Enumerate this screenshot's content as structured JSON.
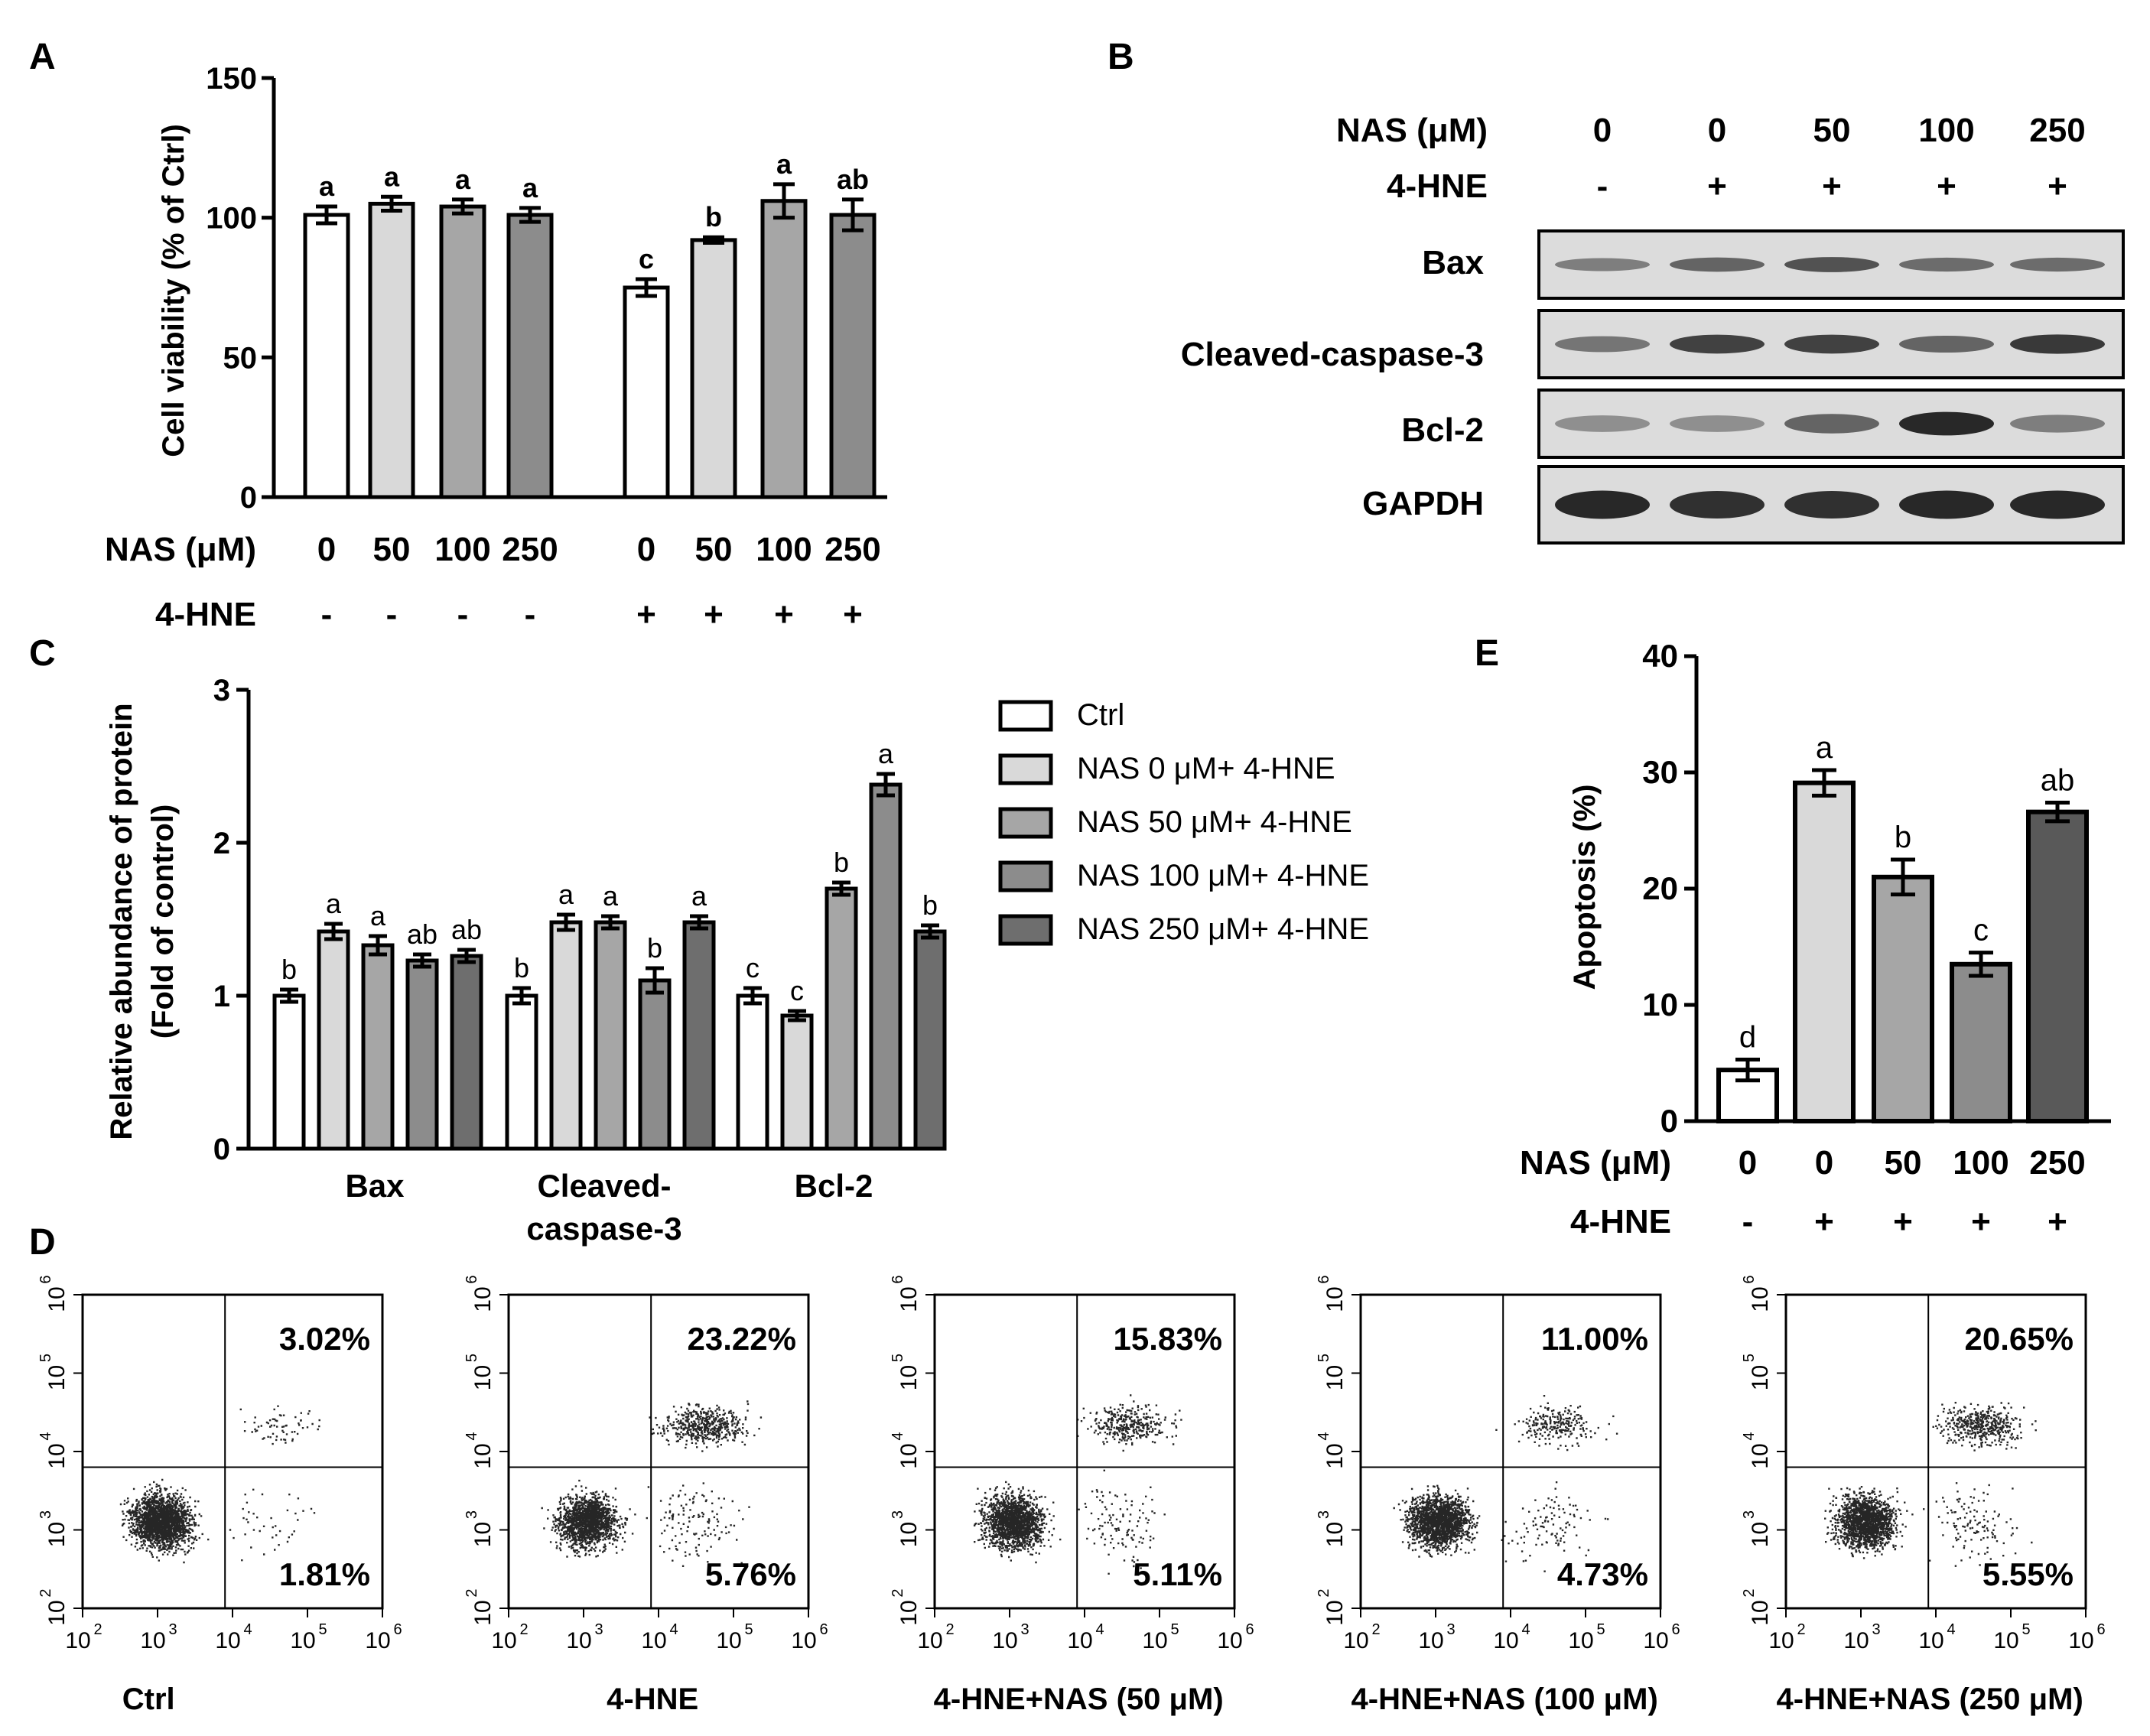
{
  "panels": {
    "A": {
      "letter": "A",
      "ylabel": "Cell viability (% of Ctrl)",
      "y_ticks": [
        "0",
        "50",
        "100",
        "150"
      ],
      "row_labels": [
        "NAS (μM)",
        "4-HNE"
      ]
    },
    "B": {
      "letter": "B",
      "row_labels": [
        "NAS (μM)",
        "4-HNE"
      ],
      "nas_values": [
        "0",
        "0",
        "50",
        "100",
        "250"
      ],
      "hne_values": [
        "-",
        "+",
        "+",
        "+",
        "+"
      ],
      "blot_labels": [
        "Bax",
        "Cleaved-caspase-3",
        "Bcl-2",
        "GAPDH"
      ]
    },
    "C": {
      "letter": "C",
      "ylabel_line1": "Relative abundance of protein",
      "ylabel_line2": "(Fold of control)",
      "y_ticks": [
        "0",
        "1",
        "2",
        "3"
      ],
      "group_labels": [
        [
          "Bax"
        ],
        [
          "Cleaved-",
          "caspase-3"
        ],
        [
          "Bcl-2"
        ]
      ]
    },
    "D": {
      "letter": "D",
      "axis_ticks": [
        "10",
        "10",
        "10",
        "10",
        "10"
      ],
      "axis_exponents": [
        "2",
        "3",
        "4",
        "5",
        "6"
      ],
      "plots": [
        {
          "label": "Ctrl",
          "upper_right": "3.02%",
          "lower_right": "1.81%"
        },
        {
          "label": "4-HNE",
          "upper_right": "23.22%",
          "lower_right": "5.76%"
        },
        {
          "label": "4-HNE+NAS (50 μM)",
          "upper_right": "15.83%",
          "lower_right": "5.11%"
        },
        {
          "label": "4-HNE+NAS (100 μM)",
          "upper_right": "11.00%",
          "lower_right": "4.73%"
        },
        {
          "label": "4-HNE+NAS (250 μM)",
          "upper_right": "20.65%",
          "lower_right": "5.55%"
        }
      ]
    },
    "E": {
      "letter": "E",
      "ylabel": "Apoptosis (%)",
      "y_ticks": [
        "0",
        "10",
        "20",
        "30",
        "40"
      ],
      "row_labels": [
        "NAS (μM)",
        "4-HNE"
      ]
    }
  },
  "colors": {
    "bar_shades": [
      "#ffffff",
      "#d9d9d9",
      "#a6a6a6",
      "#8c8c8c",
      "#6e6e6e"
    ],
    "bar_outline": "#000000"
  },
  "chart_data": [
    {
      "type": "bar",
      "panel": "A",
      "ylabel": "Cell viability (% of Ctrl)",
      "ylim": [
        0,
        150
      ],
      "categories_nas": [
        "0",
        "50",
        "100",
        "250",
        "0",
        "50",
        "100",
        "250"
      ],
      "categories_hne": [
        "-",
        "-",
        "-",
        "-",
        "+",
        "+",
        "+",
        "+"
      ],
      "values": [
        101,
        105,
        104,
        101,
        75,
        92,
        106,
        101
      ],
      "errors": [
        3,
        2.5,
        2.5,
        2.5,
        3,
        1,
        6,
        5.5
      ],
      "letters": [
        "a",
        "a",
        "a",
        "a",
        "c",
        "b",
        "a",
        "ab"
      ]
    },
    {
      "type": "bar",
      "panel": "C",
      "ylabel": "Relative abundance of protein (Fold of control)",
      "ylim": [
        0,
        3
      ],
      "categories": [
        "Bax",
        "Cleaved-caspase-3",
        "Bcl-2"
      ],
      "series": [
        {
          "name": "Ctrl",
          "values": [
            1.0,
            1.0,
            1.0
          ],
          "errors": [
            0.04,
            0.05,
            0.05
          ],
          "letters": [
            "b",
            "b",
            "c"
          ]
        },
        {
          "name": "NAS 0 μM+ 4-HNE",
          "values": [
            1.42,
            1.48,
            0.87
          ],
          "errors": [
            0.05,
            0.05,
            0.03
          ],
          "letters": [
            "a",
            "a",
            "c"
          ]
        },
        {
          "name": "NAS 50 μM+ 4-HNE",
          "values": [
            1.33,
            1.48,
            1.7
          ],
          "errors": [
            0.06,
            0.04,
            0.04
          ],
          "letters": [
            "a",
            "a",
            "b"
          ]
        },
        {
          "name": "NAS 100 μM+ 4-HNE",
          "values": [
            1.23,
            1.1,
            2.38
          ],
          "errors": [
            0.04,
            0.08,
            0.07
          ],
          "letters": [
            "ab",
            "b",
            "a"
          ]
        },
        {
          "name": "NAS 250 μM+ 4-HNE",
          "values": [
            1.26,
            1.48,
            1.42
          ],
          "errors": [
            0.04,
            0.04,
            0.04
          ],
          "letters": [
            "ab",
            "a",
            "b"
          ]
        }
      ],
      "legend": "right"
    },
    {
      "type": "bar",
      "panel": "E",
      "ylabel": "Apoptosis (%)",
      "ylim": [
        0,
        40
      ],
      "categories_nas": [
        "0",
        "0",
        "50",
        "100",
        "250"
      ],
      "categories_hne": [
        "-",
        "+",
        "+",
        "+",
        "+"
      ],
      "values": [
        4.4,
        29.1,
        21.0,
        13.5,
        26.6
      ],
      "errors": [
        0.9,
        1.1,
        1.5,
        1.0,
        0.8
      ],
      "letters": [
        "d",
        "a",
        "b",
        "c",
        "ab"
      ]
    },
    {
      "type": "scatter",
      "panel": "D",
      "xlim_log10": [
        2,
        6
      ],
      "ylim_log10": [
        2,
        6
      ],
      "gate_log10": [
        3.9,
        3.8
      ],
      "quadrant_percent": [
        {
          "upper_right": 3.02,
          "lower_right": 1.81
        },
        {
          "upper_right": 23.22,
          "lower_right": 5.76
        },
        {
          "upper_right": 15.83,
          "lower_right": 5.11
        },
        {
          "upper_right": 11.0,
          "lower_right": 4.73
        },
        {
          "upper_right": 20.65,
          "lower_right": 5.55
        }
      ]
    }
  ]
}
